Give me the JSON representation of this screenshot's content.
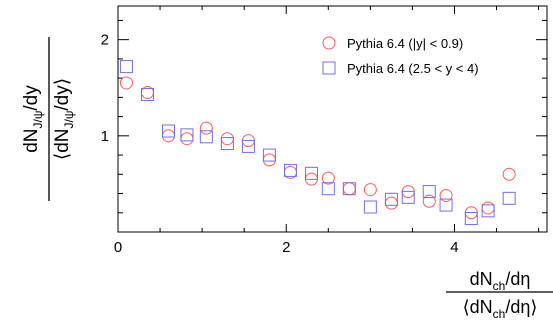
{
  "chart_data": {
    "type": "scatter",
    "xlabel": {
      "num": "dN",
      "num_sub": "ch",
      "num_tail": "/dη",
      "den_open": "⟨dN",
      "den_sub": "ch",
      "den_tail": "/dη⟩"
    },
    "ylabel": {
      "num": "dN",
      "num_sub": "J/ψ",
      "num_tail": "/dy",
      "den_open": "⟨dN",
      "den_sub": "J/ψ",
      "den_tail": "/dy⟩"
    },
    "xlim": [
      0,
      5.1
    ],
    "ylim": [
      0,
      2.35
    ],
    "xticks": [
      0,
      2,
      4
    ],
    "yticks": [
      1,
      2
    ],
    "xtick_labels": [
      "0",
      "2",
      "4"
    ],
    "ytick_labels": [
      "1",
      "2"
    ],
    "grid": false,
    "legend_position": "top-right",
    "series": [
      {
        "name": "Pythia 6.4 (|y| < 0.9)",
        "marker": "circle",
        "color": "#ff5a5a",
        "x": [
          0.1,
          0.35,
          0.6,
          0.82,
          1.05,
          1.3,
          1.55,
          1.8,
          2.05,
          2.3,
          2.5,
          2.75,
          3.0,
          3.25,
          3.45,
          3.7,
          3.9,
          4.2,
          4.4,
          4.65
        ],
        "y": [
          1.55,
          1.45,
          1.0,
          0.97,
          1.08,
          0.97,
          0.95,
          0.75,
          0.62,
          0.55,
          0.56,
          0.45,
          0.44,
          0.3,
          0.42,
          0.32,
          0.38,
          0.2,
          0.25,
          0.6
        ]
      },
      {
        "name": "Pythia 6.4 (2.5 < y < 4)",
        "marker": "square",
        "color": "#7070e8",
        "x": [
          0.1,
          0.35,
          0.6,
          0.82,
          1.05,
          1.3,
          1.55,
          1.8,
          2.05,
          2.3,
          2.5,
          2.75,
          3.0,
          3.25,
          3.45,
          3.7,
          3.9,
          4.2,
          4.4,
          4.65
        ],
        "y": [
          1.72,
          1.43,
          1.05,
          1.01,
          0.99,
          0.92,
          0.89,
          0.8,
          0.64,
          0.61,
          0.45,
          0.45,
          0.26,
          0.34,
          0.36,
          0.42,
          0.28,
          0.14,
          0.22,
          0.35
        ]
      }
    ]
  }
}
